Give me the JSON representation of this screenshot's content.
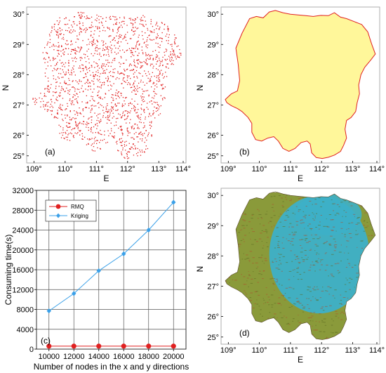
{
  "maps": {
    "lon_ticks": [
      "109°",
      "110°",
      "111°",
      "112°",
      "113°",
      "114°"
    ],
    "lat_ticks": [
      "30°",
      "29°",
      "28°",
      "27°",
      "26°",
      "25°"
    ],
    "xlabel": "E",
    "ylabel": "N",
    "panels": [
      {
        "label": "(a)",
        "style": "scatter",
        "color": "#e02020"
      },
      {
        "label": "(b)",
        "style": "filled",
        "fill": "#fff79a",
        "stroke": "#e02020"
      },
      {
        "label": "(d)",
        "style": "relief",
        "colors": [
          "#8a9a3a",
          "#3db0c8",
          "#b04a2a"
        ]
      }
    ]
  },
  "chart_data": {
    "type": "line",
    "panel_label": "(c)",
    "x": [
      10000,
      12000,
      14000,
      16000,
      18000,
      20000
    ],
    "x_tick_labels": [
      "10000",
      "12000",
      "14000",
      "16000",
      "18000",
      "20000"
    ],
    "y_tick_labels": [
      "0",
      "4000",
      "8000",
      "12000",
      "16000",
      "20000",
      "24000",
      "28000",
      "32000"
    ],
    "xlabel": "Number of nodes in the x and y directions",
    "ylabel": "Consuming time(s)",
    "xlim": [
      9000,
      21000
    ],
    "ylim": [
      0,
      32000
    ],
    "grid": true,
    "legend": "top-left",
    "series": [
      {
        "name": "RMQ",
        "color": "#e02020",
        "marker": "circle",
        "values": [
          600,
          600,
          600,
          600,
          600,
          600
        ]
      },
      {
        "name": "Kriging",
        "color": "#3aa0e8",
        "marker": "diamond",
        "values": [
          7700,
          11200,
          15800,
          19200,
          24000,
          29600
        ]
      }
    ]
  }
}
